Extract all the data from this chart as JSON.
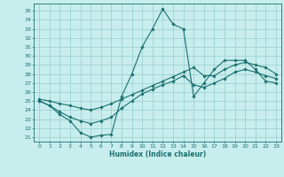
{
  "title": "",
  "xlabel": "Humidex (Indice chaleur)",
  "bg_color": "#c8eded",
  "grid_color": "#96cdcd",
  "line_color": "#1a7070",
  "xlim": [
    -0.5,
    23.5
  ],
  "ylim": [
    20.5,
    35.8
  ],
  "xticks": [
    0,
    1,
    2,
    3,
    4,
    5,
    6,
    7,
    8,
    9,
    10,
    11,
    12,
    13,
    14,
    15,
    16,
    17,
    18,
    19,
    20,
    21,
    22,
    23
  ],
  "yticks": [
    21,
    22,
    23,
    24,
    25,
    26,
    27,
    28,
    29,
    30,
    31,
    32,
    33,
    34,
    35
  ],
  "line1_x": [
    0,
    1,
    2,
    3,
    4,
    5,
    6,
    7,
    8,
    9,
    10,
    11,
    12,
    13,
    14,
    15,
    16,
    17,
    18,
    19,
    20,
    21,
    22,
    23
  ],
  "line1_y": [
    25.0,
    24.5,
    23.5,
    22.8,
    21.5,
    21.0,
    21.2,
    21.3,
    25.5,
    28.0,
    31.0,
    33.0,
    35.2,
    33.5,
    33.0,
    25.5,
    27.0,
    28.5,
    29.5,
    29.5,
    29.5,
    28.5,
    27.2,
    27.0
  ],
  "line2_x": [
    0,
    1,
    2,
    3,
    4,
    5,
    6,
    7,
    8,
    9,
    10,
    11,
    12,
    13,
    14,
    15,
    16,
    17,
    18,
    19,
    20,
    21,
    22,
    23
  ],
  "line2_y": [
    25.0,
    24.5,
    23.8,
    23.2,
    22.8,
    22.5,
    22.8,
    23.2,
    24.2,
    25.0,
    25.8,
    26.3,
    26.8,
    27.2,
    27.8,
    26.8,
    26.5,
    27.0,
    27.5,
    28.2,
    28.5,
    28.2,
    27.8,
    27.5
  ],
  "line3_x": [
    0,
    1,
    2,
    3,
    4,
    5,
    6,
    7,
    8,
    9,
    10,
    11,
    12,
    13,
    14,
    15,
    16,
    17,
    18,
    19,
    20,
    21,
    22,
    23
  ],
  "line3_y": [
    25.2,
    25.0,
    24.7,
    24.5,
    24.2,
    24.0,
    24.3,
    24.7,
    25.2,
    25.7,
    26.2,
    26.7,
    27.2,
    27.7,
    28.2,
    28.7,
    27.8,
    27.8,
    28.5,
    29.0,
    29.3,
    29.0,
    28.7,
    28.0
  ]
}
